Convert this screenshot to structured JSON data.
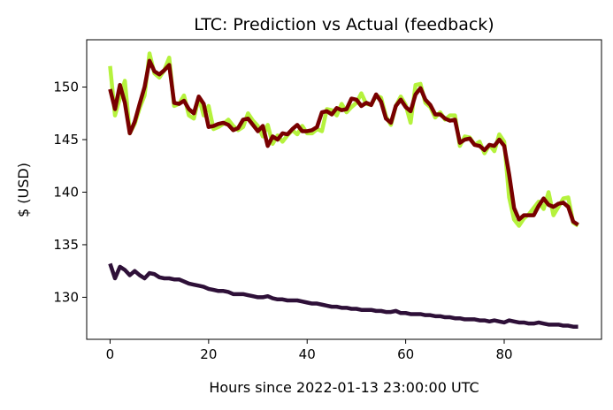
{
  "chart_data": {
    "type": "line",
    "title": "LTC: Prediction vs Actual (feedback)",
    "xlabel": "Hours since 2022-01-13 23:00:00 UTC",
    "ylabel": "$ (USD)",
    "xlim": [
      -4.75,
      99.75
    ],
    "ylim": [
      126.0,
      154.5
    ],
    "xticks": [
      0,
      20,
      40,
      60,
      80
    ],
    "yticks": [
      130,
      135,
      140,
      145,
      150
    ],
    "grid": false,
    "legend": "none",
    "series": [
      {
        "color": "#b5f23d",
        "width": 4.5,
        "x": [
          0,
          1,
          2,
          3,
          4,
          5,
          6,
          7,
          8,
          9,
          10,
          11,
          12,
          13,
          14,
          15,
          16,
          17,
          18,
          19,
          20,
          21,
          22,
          23,
          24,
          25,
          26,
          27,
          28,
          29,
          30,
          31,
          32,
          33,
          34,
          35,
          36,
          37,
          38,
          39,
          40,
          41,
          42,
          43,
          44,
          45,
          46,
          47,
          48,
          49,
          50,
          51,
          52,
          53,
          54,
          55,
          56,
          57,
          58,
          59,
          60,
          61,
          62,
          63,
          64,
          65,
          66,
          67,
          68,
          69,
          70,
          71,
          72,
          73,
          74,
          75,
          76,
          77,
          78,
          79,
          80,
          81,
          82,
          83,
          84,
          85,
          86,
          87,
          88,
          89,
          90,
          91,
          92,
          93,
          94,
          95
        ],
        "y": [
          152.0,
          147.3,
          149.0,
          150.6,
          145.6,
          146.5,
          148.0,
          149.2,
          153.2,
          151.3,
          150.9,
          151.6,
          152.8,
          148.2,
          148.4,
          149.2,
          147.3,
          147.0,
          149.0,
          147.3,
          148.2,
          146.0,
          146.2,
          146.5,
          146.9,
          146.3,
          145.9,
          146.2,
          147.5,
          146.8,
          146.3,
          145.3,
          146.4,
          144.6,
          145.4,
          144.8,
          145.4,
          145.9,
          145.5,
          146.3,
          145.6,
          145.6,
          146.0,
          145.8,
          147.9,
          147.8,
          147.3,
          148.4,
          147.6,
          148.1,
          148.5,
          149.4,
          148.4,
          148.3,
          149.2,
          149.0,
          147.2,
          146.4,
          148.2,
          149.1,
          148.3,
          146.6,
          150.2,
          150.3,
          148.5,
          148.1,
          147.1,
          147.6,
          146.9,
          147.3,
          147.3,
          144.4,
          145.3,
          145.2,
          144.5,
          144.8,
          143.7,
          144.5,
          143.9,
          145.5,
          144.8,
          139.5,
          137.4,
          136.8,
          137.5,
          137.9,
          138.5,
          139.1,
          138.4,
          140.0,
          137.8,
          138.6,
          139.4,
          139.5,
          137.1,
          136.8
        ]
      },
      {
        "color": "#780000",
        "width": 4.5,
        "x": [
          0,
          1,
          2,
          3,
          4,
          5,
          6,
          7,
          8,
          9,
          10,
          11,
          12,
          13,
          14,
          15,
          16,
          17,
          18,
          19,
          20,
          21,
          22,
          23,
          24,
          25,
          26,
          27,
          28,
          29,
          30,
          31,
          32,
          33,
          34,
          35,
          36,
          37,
          38,
          39,
          40,
          41,
          42,
          43,
          44,
          45,
          46,
          47,
          48,
          49,
          50,
          51,
          52,
          53,
          54,
          55,
          56,
          57,
          58,
          59,
          60,
          61,
          62,
          63,
          64,
          65,
          66,
          67,
          68,
          69,
          70,
          71,
          72,
          73,
          74,
          75,
          76,
          77,
          78,
          79,
          80,
          81,
          82,
          83,
          84,
          85,
          86,
          87,
          88,
          89,
          90,
          91,
          92,
          93,
          94,
          95
        ],
        "y": [
          149.8,
          147.9,
          150.2,
          148.5,
          145.6,
          146.7,
          148.4,
          150.0,
          152.5,
          151.5,
          151.2,
          151.6,
          152.1,
          148.5,
          148.4,
          148.7,
          147.9,
          147.5,
          149.1,
          148.4,
          146.2,
          146.3,
          146.5,
          146.6,
          146.4,
          145.9,
          146.1,
          146.9,
          147.0,
          146.4,
          145.8,
          146.3,
          144.4,
          145.3,
          145.0,
          145.6,
          145.5,
          146.0,
          146.4,
          145.8,
          145.8,
          145.9,
          146.2,
          147.6,
          147.7,
          147.4,
          148.0,
          147.8,
          147.9,
          148.9,
          148.8,
          148.2,
          148.5,
          148.3,
          149.3,
          148.6,
          147.0,
          146.6,
          148.2,
          148.8,
          148.1,
          147.7,
          149.3,
          149.9,
          148.8,
          148.3,
          147.4,
          147.4,
          147.0,
          146.8,
          146.9,
          144.7,
          145.0,
          145.1,
          144.5,
          144.4,
          144.0,
          144.5,
          144.4,
          145.0,
          144.4,
          141.7,
          138.5,
          137.4,
          137.8,
          137.8,
          137.8,
          138.7,
          139.4,
          138.8,
          138.6,
          138.9,
          139.0,
          138.6,
          137.2,
          136.9
        ]
      },
      {
        "color": "#2e1038",
        "width": 4.5,
        "x": [
          0,
          1,
          2,
          3,
          4,
          5,
          6,
          7,
          8,
          9,
          10,
          11,
          12,
          13,
          14,
          15,
          16,
          17,
          18,
          19,
          20,
          21,
          22,
          23,
          24,
          25,
          26,
          27,
          28,
          29,
          30,
          31,
          32,
          33,
          34,
          35,
          36,
          37,
          38,
          39,
          40,
          41,
          42,
          43,
          44,
          45,
          46,
          47,
          48,
          49,
          50,
          51,
          52,
          53,
          54,
          55,
          56,
          57,
          58,
          59,
          60,
          61,
          62,
          63,
          64,
          65,
          66,
          67,
          68,
          69,
          70,
          71,
          72,
          73,
          74,
          75,
          76,
          77,
          78,
          79,
          80,
          81,
          82,
          83,
          84,
          85,
          86,
          87,
          88,
          89,
          90,
          91,
          92,
          93,
          94,
          95
        ],
        "y": [
          133.2,
          131.8,
          132.9,
          132.6,
          132.1,
          132.5,
          132.1,
          131.8,
          132.3,
          132.2,
          131.9,
          131.8,
          131.8,
          131.7,
          131.7,
          131.5,
          131.3,
          131.2,
          131.1,
          131.0,
          130.8,
          130.7,
          130.6,
          130.6,
          130.5,
          130.3,
          130.3,
          130.3,
          130.2,
          130.1,
          130.0,
          130.0,
          130.1,
          129.9,
          129.8,
          129.8,
          129.7,
          129.7,
          129.7,
          129.6,
          129.5,
          129.4,
          129.4,
          129.3,
          129.2,
          129.1,
          129.1,
          129.0,
          129.0,
          128.9,
          128.9,
          128.8,
          128.8,
          128.8,
          128.7,
          128.7,
          128.6,
          128.6,
          128.7,
          128.5,
          128.5,
          128.4,
          128.4,
          128.4,
          128.3,
          128.3,
          128.2,
          128.2,
          128.1,
          128.1,
          128.0,
          128.0,
          127.9,
          127.9,
          127.9,
          127.8,
          127.8,
          127.7,
          127.8,
          127.7,
          127.6,
          127.8,
          127.7,
          127.6,
          127.6,
          127.5,
          127.5,
          127.6,
          127.5,
          127.4,
          127.4,
          127.4,
          127.3,
          127.3,
          127.2,
          127.2
        ]
      }
    ]
  }
}
